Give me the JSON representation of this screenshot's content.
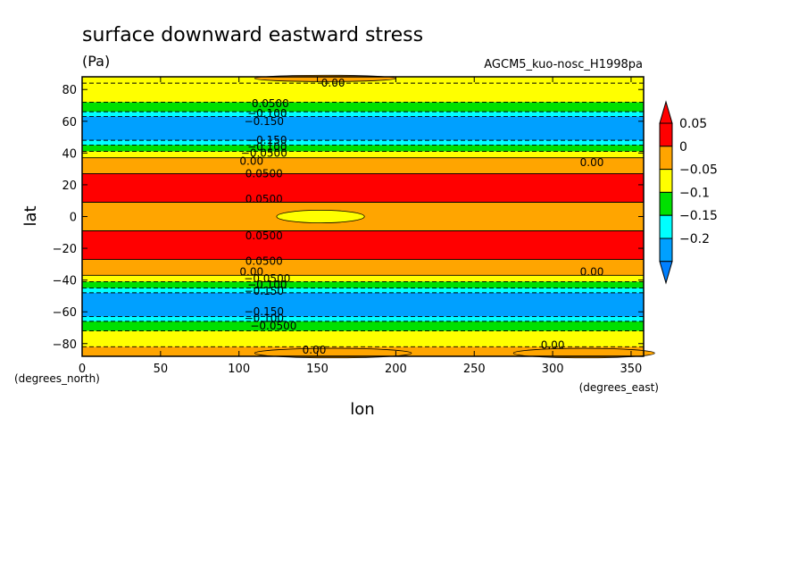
{
  "chart_data": {
    "type": "heatmap",
    "title": "surface downward eastward stress",
    "units": "(Pa)",
    "run_id": "AGCM5_kuo-nosc_H1998pa",
    "xlabel": "lon",
    "ylabel": "lat",
    "x_units": "(degrees_east)",
    "y_units": "(degrees_north)",
    "xlim": [
      0,
      358
    ],
    "ylim": [
      -88,
      88
    ],
    "x_ticks": [
      "0",
      "50",
      "100",
      "150",
      "200",
      "250",
      "300",
      "350"
    ],
    "y_ticks": [
      "80",
      "60",
      "40",
      "20",
      "0",
      "−20",
      "−40",
      "−60",
      "−80"
    ],
    "colorbar": {
      "levels": [
        "0.05",
        "0",
        "−0.05",
        "−0.1",
        "−0.15",
        "−0.2"
      ],
      "colors": [
        "#ff0000",
        "#ffa500",
        "#ffff00",
        "#00e000",
        "#00ffff",
        "#00a0ff"
      ],
      "over_color": "#ff0000",
      "under_color": "#0080ff"
    },
    "zonal_bands": [
      {
        "lat_min": 84,
        "lat_max": 88,
        "class": 2
      },
      {
        "lat_min": 72,
        "lat_max": 84,
        "class": 2
      },
      {
        "lat_min": 66,
        "lat_max": 72,
        "class": 3
      },
      {
        "lat_min": 63,
        "lat_max": 66,
        "class": 4
      },
      {
        "lat_min": 48,
        "lat_max": 63,
        "class": 5
      },
      {
        "lat_min": 45,
        "lat_max": 48,
        "class": 4
      },
      {
        "lat_min": 41,
        "lat_max": 45,
        "class": 3
      },
      {
        "lat_min": 37,
        "lat_max": 41,
        "class": 2
      },
      {
        "lat_min": 27,
        "lat_max": 37,
        "class": 1
      },
      {
        "lat_min": 9,
        "lat_max": 27,
        "class": 0
      },
      {
        "lat_min": -9,
        "lat_max": 9,
        "class": 1
      },
      {
        "lat_min": -27,
        "lat_max": -9,
        "class": 0
      },
      {
        "lat_min": -37,
        "lat_max": -27,
        "class": 1
      },
      {
        "lat_min": -41,
        "lat_max": -37,
        "class": 2
      },
      {
        "lat_min": -45,
        "lat_max": -41,
        "class": 3
      },
      {
        "lat_min": -48,
        "lat_max": -45,
        "class": 4
      },
      {
        "lat_min": -63,
        "lat_max": -48,
        "class": 5
      },
      {
        "lat_min": -66,
        "lat_max": -63,
        "class": 4
      },
      {
        "lat_min": -72,
        "lat_max": -66,
        "class": 3
      },
      {
        "lat_min": -82,
        "lat_max": -72,
        "class": 2
      },
      {
        "lat_min": -88,
        "lat_max": -82,
        "class": 1
      }
    ],
    "features": [
      {
        "kind": "ellipse",
        "lon_c": 152,
        "lat_c": 0,
        "lon_r": 28,
        "lat_r": 4,
        "class": 2
      },
      {
        "kind": "ellipse",
        "lon_c": 155,
        "lat_c": 87,
        "lon_r": 45,
        "lat_r": 2,
        "class": 1
      },
      {
        "kind": "ellipse",
        "lon_c": 160,
        "lat_c": -86,
        "lon_r": 50,
        "lat_r": 3,
        "class": 1
      },
      {
        "kind": "ellipse",
        "lon_c": 320,
        "lat_c": -86,
        "lon_r": 45,
        "lat_r": 3,
        "class": 1
      }
    ],
    "contour_labels": [
      {
        "text": "0.00",
        "lon": 160,
        "lat": 84
      },
      {
        "text": "0.0500",
        "lon": 120,
        "lat": 71
      },
      {
        "text": "−0.100",
        "lon": 118,
        "lat": 65
      },
      {
        "text": "−0.150",
        "lon": 116,
        "lat": 60
      },
      {
        "text": "−0.150",
        "lon": 118,
        "lat": 48
      },
      {
        "text": "−0.100",
        "lon": 118,
        "lat": 44
      },
      {
        "text": "−0.0500",
        "lon": 116,
        "lat": 40
      },
      {
        "text": "0.00",
        "lon": 108,
        "lat": 35
      },
      {
        "text": "0.0500",
        "lon": 116,
        "lat": 27
      },
      {
        "text": "0.0500",
        "lon": 116,
        "lat": 11
      },
      {
        "text": "0.0500",
        "lon": 116,
        "lat": -12
      },
      {
        "text": "0.00",
        "lon": 325,
        "lat": 34
      },
      {
        "text": "0.0500",
        "lon": 116,
        "lat": -28
      },
      {
        "text": "0.00",
        "lon": 108,
        "lat": -35
      },
      {
        "text": "−0.0500",
        "lon": 118,
        "lat": -39
      },
      {
        "text": "−0.100",
        "lon": 118,
        "lat": -43
      },
      {
        "text": "−0.150",
        "lon": 116,
        "lat": -47
      },
      {
        "text": "−0.150",
        "lon": 116,
        "lat": -60
      },
      {
        "text": "−0.100",
        "lon": 116,
        "lat": -64
      },
      {
        "text": "−0.0500",
        "lon": 122,
        "lat": -69
      },
      {
        "text": "0.00",
        "lon": 325,
        "lat": -35
      },
      {
        "text": "0.00",
        "lon": 148,
        "lat": -84
      },
      {
        "text": "0.00",
        "lon": 300,
        "lat": -81
      }
    ]
  }
}
